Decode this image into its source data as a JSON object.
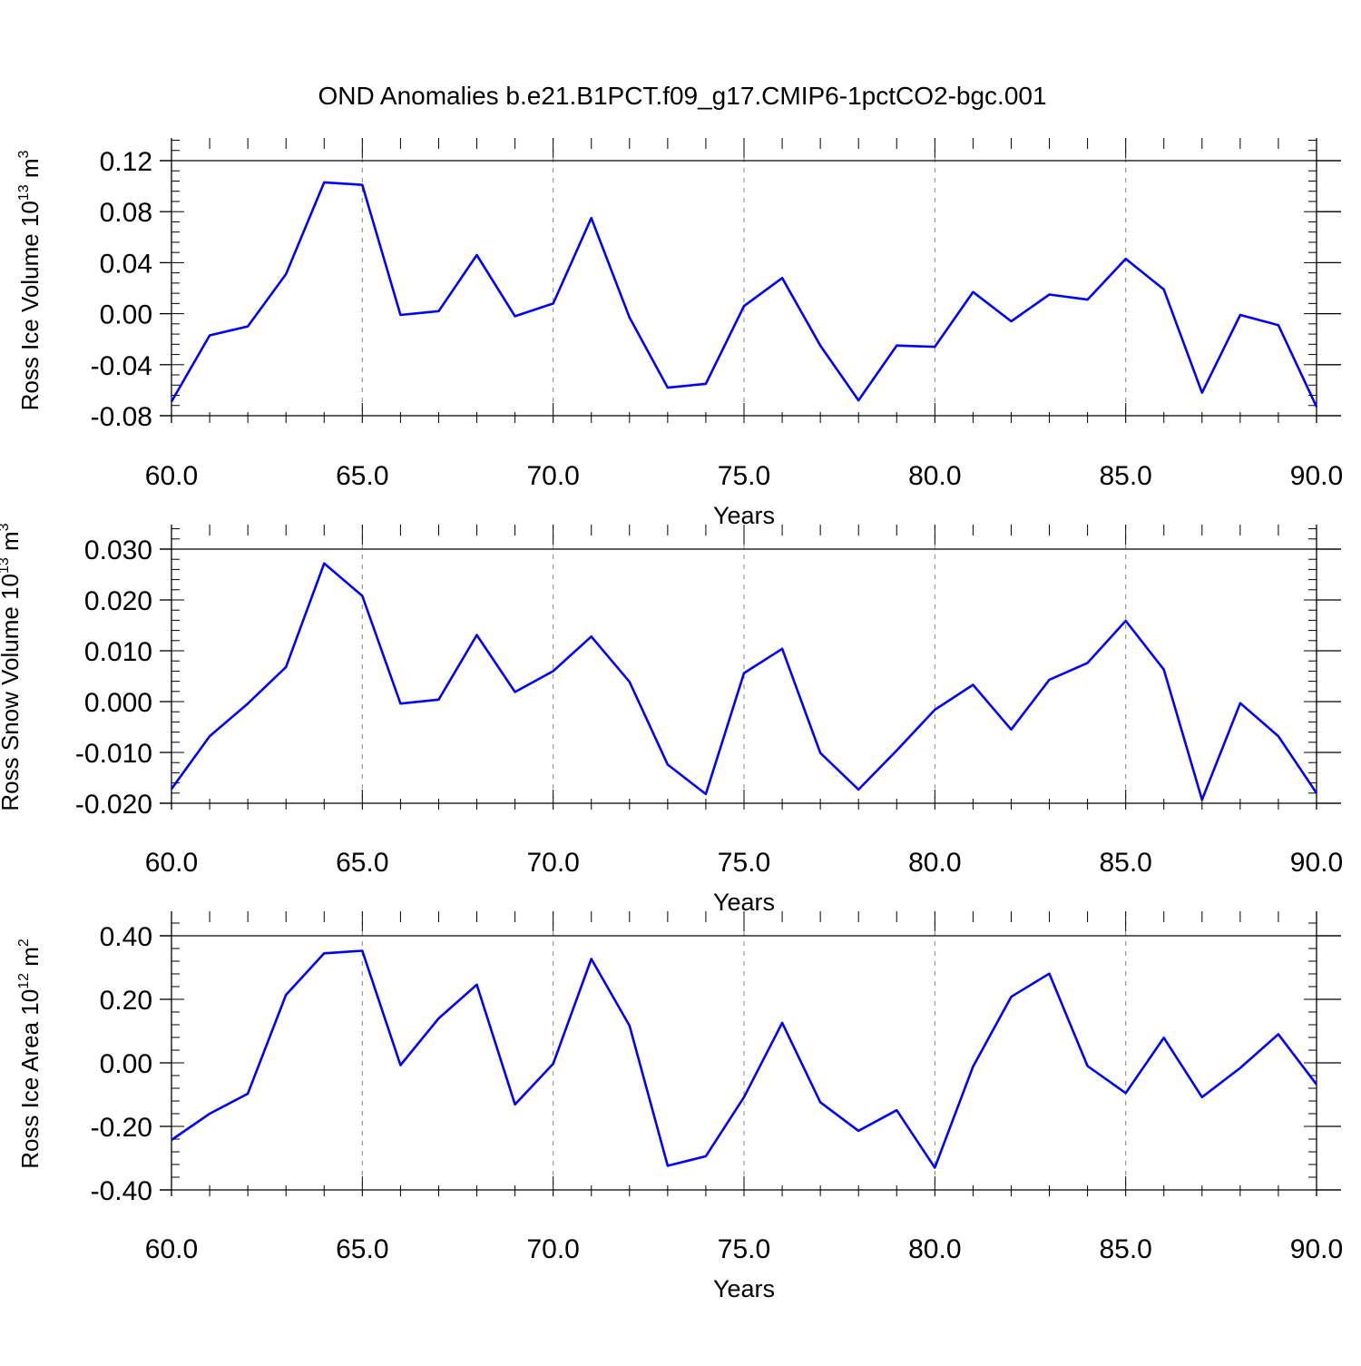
{
  "title": "OND Anomalies b.e21.B1PCT.f09_g17.CMIP6-1pctCO2-bgc.001",
  "style": {
    "line_color": "#0000ff",
    "axis_color": "#000000",
    "grid_color": "#888888"
  },
  "chart_data": [
    {
      "type": "line",
      "ylabel": "Ross Ice Volume 10",
      "ylabel_exp": "13",
      "ylabel_unit": " m",
      "ylabel_unit_exp": "3",
      "xlabel": "Years",
      "xlim": [
        60,
        90
      ],
      "ylim": [
        -0.09,
        0.135
      ],
      "grid": "vertical dashed",
      "xticks": [
        "60.0",
        "65.0",
        "70.0",
        "75.0",
        "80.0",
        "85.0",
        "90.0"
      ],
      "xtick_values": [
        60,
        65,
        70,
        75,
        80,
        85,
        90
      ],
      "yticks": [
        "0.12",
        "0.08",
        "0.04",
        "0.00",
        "-0.04",
        "-0.08"
      ],
      "ytick_values": [
        0.12,
        0.08,
        0.04,
        0.0,
        -0.04,
        -0.08
      ],
      "x": [
        60,
        61,
        62,
        63,
        64,
        65,
        66,
        67,
        68,
        69,
        70,
        71,
        72,
        73,
        74,
        75,
        76,
        77,
        78,
        79,
        80,
        81,
        82,
        83,
        84,
        85,
        86,
        87,
        88,
        89,
        90
      ],
      "series": [
        {
          "values": [
            -0.069,
            -0.017,
            -0.01,
            0.031,
            0.103,
            0.101,
            -0.001,
            0.002,
            0.046,
            -0.002,
            0.008,
            0.075,
            -0.003,
            -0.058,
            -0.055,
            0.006,
            0.028,
            -0.025,
            -0.068,
            -0.025,
            -0.026,
            0.017,
            -0.006,
            0.015,
            0.011,
            0.043,
            0.019,
            -0.062,
            -0.001,
            -0.009,
            -0.073
          ]
        }
      ]
    },
    {
      "type": "line",
      "ylabel": "Ross Snow Volume 10",
      "ylabel_exp": "13",
      "ylabel_unit": " m",
      "ylabel_unit_exp": "3",
      "xlabel": "Years",
      "xlim": [
        60,
        90
      ],
      "ylim": [
        -0.0225,
        0.0305
      ],
      "grid": "vertical dashed",
      "xticks": [
        "60.0",
        "65.0",
        "70.0",
        "75.0",
        "80.0",
        "85.0",
        "90.0"
      ],
      "xtick_values": [
        60,
        65,
        70,
        75,
        80,
        85,
        90
      ],
      "yticks": [
        "0.030",
        "0.020",
        "0.010",
        "0.000",
        "-0.010",
        "-0.020"
      ],
      "ytick_values": [
        0.03,
        0.02,
        0.01,
        0.0,
        -0.01,
        -0.02
      ],
      "x": [
        60,
        61,
        62,
        63,
        64,
        65,
        66,
        67,
        68,
        69,
        70,
        71,
        72,
        73,
        74,
        75,
        76,
        77,
        78,
        79,
        80,
        81,
        82,
        83,
        84,
        85,
        86,
        87,
        88,
        89,
        90
      ],
      "series": [
        {
          "values": [
            -0.0172,
            -0.0068,
            -0.0004,
            0.0068,
            0.0272,
            0.0208,
            -0.0004,
            0.0004,
            0.0131,
            0.0019,
            0.006,
            0.0128,
            0.0039,
            -0.0124,
            -0.0182,
            0.0056,
            0.0104,
            -0.0101,
            -0.0173,
            -0.0096,
            -0.0016,
            0.0033,
            -0.0055,
            0.0043,
            0.0076,
            0.0159,
            0.0063,
            -0.0193,
            -0.0003,
            -0.0068,
            -0.018
          ]
        }
      ]
    },
    {
      "type": "line",
      "ylabel": "Ross Ice Area 10",
      "ylabel_exp": "12",
      "ylabel_unit": " m",
      "ylabel_unit_exp": "2",
      "xlabel": "Years",
      "xlim": [
        60,
        90
      ],
      "ylim": [
        -0.4,
        0.42
      ],
      "grid": "vertical dashed",
      "xticks": [
        "60.0",
        "65.0",
        "70.0",
        "75.0",
        "80.0",
        "85.0",
        "90.0"
      ],
      "xtick_values": [
        60,
        65,
        70,
        75,
        80,
        85,
        90
      ],
      "yticks": [
        "0.40",
        "0.20",
        "0.00",
        "-0.20",
        "-0.40"
      ],
      "ytick_values": [
        0.4,
        0.2,
        0.0,
        -0.2,
        -0.4
      ],
      "x": [
        60,
        61,
        62,
        63,
        64,
        65,
        66,
        67,
        68,
        69,
        70,
        71,
        72,
        73,
        74,
        75,
        76,
        77,
        78,
        79,
        80,
        81,
        82,
        83,
        84,
        85,
        86,
        87,
        88,
        89,
        90
      ],
      "series": [
        {
          "values": [
            -0.243,
            -0.16,
            -0.097,
            0.214,
            0.345,
            0.353,
            -0.007,
            0.14,
            0.246,
            -0.131,
            -0.003,
            0.327,
            0.117,
            -0.324,
            -0.294,
            -0.108,
            0.126,
            -0.124,
            -0.214,
            -0.149,
            -0.33,
            -0.012,
            0.208,
            0.281,
            -0.01,
            -0.095,
            0.079,
            -0.108,
            -0.016,
            0.09,
            -0.068
          ]
        }
      ]
    }
  ]
}
